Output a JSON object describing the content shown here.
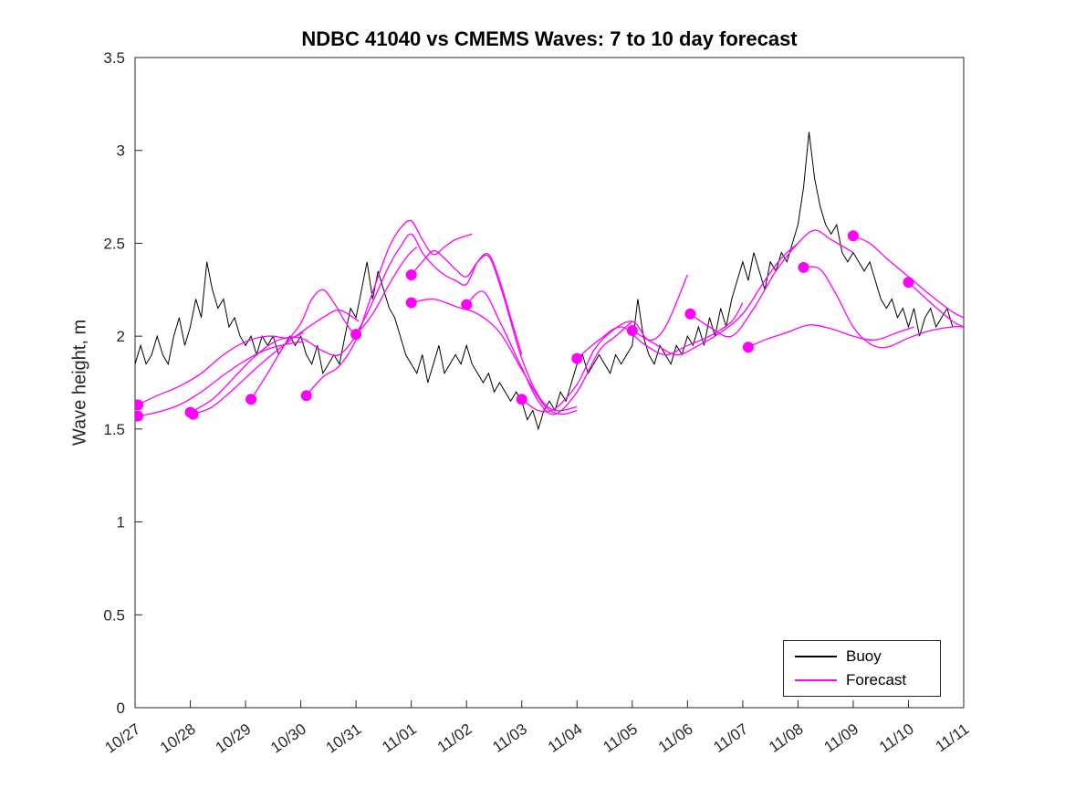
{
  "figure": {
    "title": "NDBC 41040 vs CMEMS Waves: 7 to 10 day forecast",
    "ylabel": "Wave height, m"
  },
  "legend": {
    "items": [
      {
        "label": "Buoy",
        "color": "#000000"
      },
      {
        "label": "Forecast",
        "color": "#FF00FF"
      }
    ]
  },
  "chart_data": {
    "type": "line",
    "title": "NDBC 41040 vs CMEMS Waves: 7 to 10 day forecast",
    "xlabel": "",
    "ylabel": "Wave height, m",
    "grid": false,
    "legend_position": "lower right",
    "axis_color": "#262626",
    "xlim": [
      0,
      15
    ],
    "ylim": [
      0,
      3.5
    ],
    "xticks": [
      0,
      1,
      2,
      3,
      4,
      5,
      6,
      7,
      8,
      9,
      10,
      11,
      12,
      13,
      14,
      15
    ],
    "xtick_labels": [
      "10/27",
      "10/28",
      "10/29",
      "10/30",
      "10/31",
      "11/01",
      "11/02",
      "11/03",
      "11/04",
      "11/05",
      "11/06",
      "11/07",
      "11/08",
      "11/09",
      "11/10",
      "11/11"
    ],
    "yticks": [
      0,
      0.5,
      1,
      1.5,
      2,
      2.5,
      3,
      3.5
    ],
    "ytick_labels": [
      "0",
      "0.5",
      "1",
      "1.5",
      "2",
      "2.5",
      "3",
      "3.5"
    ],
    "series": [
      {
        "name": "Buoy",
        "type": "line",
        "color": "#000000",
        "x_start": 0,
        "x_step": 0.1,
        "values": [
          1.85,
          1.95,
          1.85,
          1.9,
          2.0,
          1.9,
          1.85,
          2.0,
          2.1,
          1.95,
          2.05,
          2.2,
          2.1,
          2.4,
          2.25,
          2.15,
          2.2,
          2.05,
          2.1,
          2.0,
          1.95,
          2.0,
          1.9,
          2.0,
          1.95,
          2.0,
          1.9,
          1.95,
          2.0,
          1.95,
          2.0,
          1.9,
          1.85,
          1.95,
          1.8,
          1.85,
          1.9,
          1.85,
          2.0,
          2.15,
          2.1,
          2.25,
          2.4,
          2.2,
          2.35,
          2.25,
          2.15,
          2.1,
          2.0,
          1.9,
          1.85,
          1.8,
          1.9,
          1.75,
          1.85,
          1.95,
          1.8,
          1.85,
          1.9,
          1.85,
          1.95,
          1.85,
          1.8,
          1.75,
          1.8,
          1.7,
          1.75,
          1.7,
          1.65,
          1.7,
          1.65,
          1.55,
          1.6,
          1.5,
          1.6,
          1.65,
          1.6,
          1.7,
          1.65,
          1.75,
          1.85,
          1.9,
          1.8,
          1.85,
          1.9,
          1.85,
          1.8,
          1.9,
          1.85,
          1.9,
          1.95,
          2.2,
          2.0,
          1.9,
          1.85,
          1.95,
          1.9,
          1.85,
          1.95,
          1.9,
          2.0,
          1.95,
          2.05,
          1.95,
          2.1,
          2.0,
          2.15,
          2.05,
          2.2,
          2.3,
          2.4,
          2.3,
          2.45,
          2.35,
          2.25,
          2.4,
          2.35,
          2.45,
          2.4,
          2.5,
          2.6,
          2.8,
          3.1,
          2.85,
          2.7,
          2.6,
          2.55,
          2.6,
          2.45,
          2.4,
          2.45,
          2.4,
          2.35,
          2.4,
          2.3,
          2.2,
          2.15,
          2.2,
          2.1,
          2.15,
          2.05,
          2.15,
          2.0,
          2.1,
          2.15,
          2.05,
          2.1,
          2.15,
          2.05
        ]
      },
      {
        "name": "Forecast",
        "type": "multi-line",
        "color": "#FF00FF",
        "segments": [
          [
            [
              0.05,
              1.63
            ],
            [
              0.4,
              1.68
            ],
            [
              0.8,
              1.73
            ],
            [
              1.2,
              1.8
            ],
            [
              1.6,
              1.9
            ],
            [
              2.0,
              1.97
            ],
            [
              2.4,
              2.0
            ],
            [
              2.8,
              1.99
            ],
            [
              3.05,
              2.02
            ]
          ],
          [
            [
              0.05,
              1.57
            ],
            [
              0.4,
              1.59
            ],
            [
              0.8,
              1.63
            ],
            [
              1.2,
              1.7
            ],
            [
              1.6,
              1.79
            ],
            [
              2.0,
              1.87
            ],
            [
              2.4,
              1.93
            ],
            [
              2.8,
              1.96
            ],
            [
              3.05,
              1.97
            ]
          ],
          [
            [
              1.0,
              1.59
            ],
            [
              1.4,
              1.66
            ],
            [
              1.8,
              1.78
            ],
            [
              2.2,
              1.9
            ],
            [
              2.6,
              1.98
            ],
            [
              3.0,
              1.99
            ],
            [
              3.4,
              1.92
            ],
            [
              3.7,
              1.9
            ],
            [
              4.0,
              2.0
            ]
          ],
          [
            [
              1.05,
              1.58
            ],
            [
              1.4,
              1.62
            ],
            [
              1.8,
              1.72
            ],
            [
              2.2,
              1.83
            ],
            [
              2.6,
              1.93
            ],
            [
              3.0,
              2.02
            ],
            [
              3.4,
              2.1
            ],
            [
              3.7,
              2.14
            ],
            [
              4.05,
              2.08
            ]
          ],
          [
            [
              2.1,
              1.66
            ],
            [
              2.4,
              1.8
            ],
            [
              2.7,
              1.95
            ],
            [
              3.0,
              2.07
            ],
            [
              3.2,
              2.2
            ],
            [
              3.4,
              2.25
            ],
            [
              3.6,
              2.18
            ],
            [
              3.8,
              2.08
            ],
            [
              4.0,
              2.02
            ],
            [
              4.3,
              2.12
            ],
            [
              4.6,
              2.28
            ],
            [
              4.9,
              2.42
            ],
            [
              5.1,
              2.48
            ]
          ],
          [
            [
              3.1,
              1.68
            ],
            [
              3.4,
              1.78
            ],
            [
              3.7,
              1.84
            ],
            [
              4.0,
              1.98
            ],
            [
              4.2,
              2.15
            ],
            [
              4.4,
              2.32
            ],
            [
              4.6,
              2.48
            ],
            [
              4.8,
              2.58
            ],
            [
              5.0,
              2.62
            ],
            [
              5.2,
              2.52
            ],
            [
              5.4,
              2.44
            ],
            [
              5.6,
              2.48
            ],
            [
              5.8,
              2.52
            ],
            [
              6.1,
              2.55
            ]
          ],
          [
            [
              4.0,
              2.01
            ],
            [
              4.2,
              2.12
            ],
            [
              4.4,
              2.25
            ],
            [
              4.6,
              2.38
            ],
            [
              4.8,
              2.48
            ],
            [
              5.0,
              2.55
            ],
            [
              5.2,
              2.45
            ],
            [
              5.4,
              2.38
            ],
            [
              5.6,
              2.33
            ],
            [
              5.8,
              2.3
            ],
            [
              6.0,
              2.28
            ],
            [
              6.2,
              2.4
            ],
            [
              6.4,
              2.44
            ],
            [
              6.6,
              2.3
            ],
            [
              6.8,
              2.1
            ],
            [
              7.0,
              1.9
            ]
          ],
          [
            [
              5.0,
              2.33
            ],
            [
              5.2,
              2.4
            ],
            [
              5.4,
              2.46
            ],
            [
              5.6,
              2.42
            ],
            [
              5.8,
              2.36
            ],
            [
              6.0,
              2.32
            ],
            [
              6.2,
              2.4
            ],
            [
              6.4,
              2.43
            ],
            [
              6.6,
              2.28
            ],
            [
              6.8,
              2.08
            ],
            [
              7.0,
              1.88
            ],
            [
              7.3,
              1.68
            ],
            [
              7.6,
              1.6
            ],
            [
              8.0,
              1.62
            ]
          ],
          [
            [
              5.0,
              2.18
            ],
            [
              5.4,
              2.2
            ],
            [
              5.8,
              2.16
            ],
            [
              6.2,
              2.12
            ],
            [
              6.6,
              2.02
            ],
            [
              7.0,
              1.82
            ],
            [
              7.4,
              1.63
            ],
            [
              7.7,
              1.58
            ],
            [
              8.0,
              1.6
            ]
          ],
          [
            [
              6.0,
              2.17
            ],
            [
              6.3,
              2.24
            ],
            [
              6.6,
              2.08
            ],
            [
              7.0,
              1.83
            ],
            [
              7.3,
              1.65
            ],
            [
              7.6,
              1.58
            ],
            [
              8.0,
              1.7
            ],
            [
              8.4,
              1.92
            ],
            [
              8.7,
              2.0
            ],
            [
              9.0,
              2.08
            ]
          ],
          [
            [
              7.0,
              1.66
            ],
            [
              7.3,
              1.6
            ],
            [
              7.6,
              1.61
            ],
            [
              8.0,
              1.74
            ],
            [
              8.3,
              1.92
            ],
            [
              8.6,
              2.02
            ],
            [
              9.0,
              2.08
            ],
            [
              9.3,
              1.98
            ],
            [
              9.6,
              2.05
            ],
            [
              10.0,
              2.33
            ]
          ],
          [
            [
              8.0,
              1.88
            ],
            [
              8.4,
              1.98
            ],
            [
              8.8,
              2.05
            ],
            [
              9.2,
              1.96
            ],
            [
              9.6,
              1.9
            ],
            [
              10.0,
              1.95
            ],
            [
              10.4,
              2.0
            ],
            [
              10.8,
              2.08
            ],
            [
              11.0,
              2.18
            ]
          ],
          [
            [
              9.0,
              2.03
            ],
            [
              9.4,
              1.96
            ],
            [
              9.8,
              1.9
            ],
            [
              10.2,
              1.95
            ],
            [
              10.6,
              2.02
            ],
            [
              11.0,
              2.12
            ],
            [
              11.4,
              2.3
            ],
            [
              11.7,
              2.42
            ],
            [
              12.0,
              2.5
            ]
          ],
          [
            [
              10.05,
              2.12
            ],
            [
              10.4,
              2.05
            ],
            [
              10.8,
              2.0
            ],
            [
              11.2,
              2.15
            ],
            [
              11.6,
              2.35
            ],
            [
              12.0,
              2.5
            ],
            [
              12.3,
              2.57
            ],
            [
              12.6,
              2.52
            ],
            [
              13.0,
              2.45
            ]
          ],
          [
            [
              11.1,
              1.94
            ],
            [
              11.4,
              1.98
            ],
            [
              11.8,
              2.02
            ],
            [
              12.2,
              2.06
            ],
            [
              12.6,
              2.04
            ],
            [
              13.0,
              2.0
            ],
            [
              13.4,
              1.98
            ],
            [
              13.8,
              2.02
            ],
            [
              14.1,
              2.05
            ]
          ],
          [
            [
              12.1,
              2.37
            ],
            [
              12.4,
              2.36
            ],
            [
              12.7,
              2.22
            ],
            [
              13.0,
              2.05
            ],
            [
              13.3,
              1.96
            ],
            [
              13.6,
              1.94
            ],
            [
              14.0,
              1.99
            ],
            [
              14.4,
              2.03
            ],
            [
              14.8,
              2.05
            ],
            [
              15.0,
              2.05
            ]
          ],
          [
            [
              13.0,
              2.54
            ],
            [
              13.3,
              2.5
            ],
            [
              13.6,
              2.42
            ],
            [
              14.0,
              2.32
            ],
            [
              14.4,
              2.22
            ],
            [
              14.8,
              2.13
            ],
            [
              15.0,
              2.1
            ]
          ],
          [
            [
              14.0,
              2.29
            ],
            [
              14.4,
              2.18
            ],
            [
              14.8,
              2.08
            ],
            [
              15.0,
              2.05
            ]
          ]
        ]
      },
      {
        "name": "Forecast start markers",
        "type": "scatter",
        "color": "#FF00FF",
        "marker_radius": 6,
        "points": [
          [
            0.05,
            1.63
          ],
          [
            0.05,
            1.57
          ],
          [
            1.0,
            1.59
          ],
          [
            1.05,
            1.58
          ],
          [
            2.1,
            1.66
          ],
          [
            3.1,
            1.68
          ],
          [
            4.0,
            2.01
          ],
          [
            5.0,
            2.33
          ],
          [
            5.0,
            2.18
          ],
          [
            6.0,
            2.17
          ],
          [
            7.0,
            1.66
          ],
          [
            8.0,
            1.88
          ],
          [
            9.0,
            2.03
          ],
          [
            10.05,
            2.12
          ],
          [
            11.1,
            1.94
          ],
          [
            12.1,
            2.37
          ],
          [
            13.0,
            2.54
          ],
          [
            14.0,
            2.29
          ]
        ]
      }
    ]
  }
}
